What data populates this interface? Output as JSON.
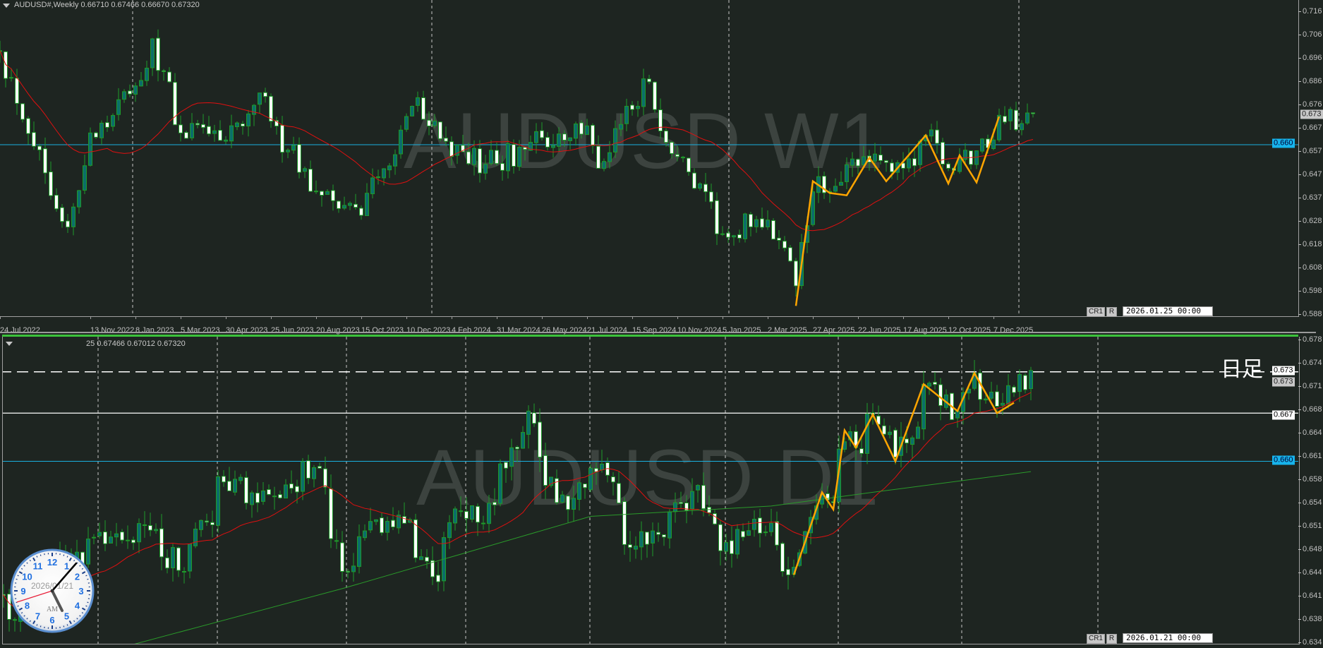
{
  "top_chart": {
    "title": "AUDUSD#,Weekly  0.66710 0.67466 0.66670 0.67320",
    "watermark": "AUDUSD W1",
    "price_ticks": [
      "0.716",
      "0.706",
      "0.696",
      "0.686",
      "0.676",
      "0.667",
      "0.657",
      "0.647",
      "0.637",
      "0.628",
      "0.618",
      "0.608",
      "0.598",
      "0.588"
    ],
    "current_price_label": "0.673",
    "hline_label": "0.660",
    "date_labels": [
      "24 Jul 2022",
      "13 Nov 2022",
      "8 Jan 2023",
      "5 Mar 2023",
      "30 Apr 2023",
      "25 Jun 2023",
      "20 Aug 2023",
      "15 Oct 2023",
      "10 Dec 2023",
      "4 Feb 2024",
      "31 Mar 2024",
      "26 May 2024",
      "21 Jul 2024",
      "15 Sep 2024",
      "10 Nov 2024",
      "5 Jan 2025",
      "2 Mar 2025",
      "27 Apr 2025",
      "22 Jun 2025",
      "17 Aug 2025",
      "12 Oct 2025",
      "7 Dec 2025"
    ],
    "buttons": {
      "cr1": "CR1",
      "r": "R"
    },
    "cursor_date": "2026.01.25 00:00"
  },
  "bottom_chart": {
    "title": "25 0.67466 0.67012 0.67320",
    "watermark": "AUDUSD D1",
    "label": "日足",
    "price_ticks": [
      "0.678",
      "0.674",
      "0.671",
      "0.668",
      "0.664",
      "0.661",
      "0.658",
      "0.654",
      "0.651",
      "0.648",
      "0.644",
      "0.641",
      "0.638",
      "0.634"
    ],
    "dashed_level_label": "0.673",
    "current_price_label": "0.673",
    "white_level_label": "0.667",
    "blue_level_label": "0.660",
    "buttons": {
      "cr1": "CR1",
      "r": "R"
    },
    "cursor_date": "2026.01.21 00:00"
  },
  "clock": {
    "date": "2026/01/21",
    "ampm": "AM",
    "numbers": [
      "12",
      "1",
      "2",
      "3",
      "4",
      "5",
      "6",
      "7",
      "8",
      "9",
      "10",
      "11"
    ]
  },
  "colors": {
    "background": "#1e2521",
    "bull_body": "#0b6e6a",
    "bear_body": "#ffffff",
    "candle_outline": "#1e9a2a",
    "ma_short": "#e01010",
    "ma_long": "#2a9a2a",
    "zigzag": "#ffa500",
    "level_blue": "#1ab0e0",
    "level_white": "#ffffff",
    "separator_green": "#3cc23c"
  },
  "chart_data": [
    {
      "type": "candlestick",
      "symbol": "AUDUSD#",
      "timeframe": "Weekly",
      "ylim": [
        0.588,
        0.716
      ],
      "grid": "vertical dashed",
      "ohlc_last": {
        "open": 0.6671,
        "high": 0.67466,
        "low": 0.6667,
        "close": 0.6732
      },
      "approx_close_path": [
        [
          "2022-07-24",
          0.7
        ],
        [
          "2022-10-16",
          0.625
        ],
        [
          "2022-11-13",
          0.665
        ],
        [
          "2023-01-08",
          0.685
        ],
        [
          "2023-01-29",
          0.705
        ],
        [
          "2023-03-05",
          0.665
        ],
        [
          "2023-04-30",
          0.662
        ],
        [
          "2023-06-11",
          0.682
        ],
        [
          "2023-06-25",
          0.67
        ],
        [
          "2023-08-20",
          0.64
        ],
        [
          "2023-10-15",
          0.63
        ],
        [
          "2023-12-10",
          0.672
        ],
        [
          "2023-12-24",
          0.68
        ],
        [
          "2024-02-04",
          0.655
        ],
        [
          "2024-03-31",
          0.652
        ],
        [
          "2024-05-26",
          0.663
        ],
        [
          "2024-07-21",
          0.668
        ],
        [
          "2024-08-04",
          0.65
        ],
        [
          "2024-09-15",
          0.675
        ],
        [
          "2024-09-29",
          0.688
        ],
        [
          "2024-11-10",
          0.655
        ],
        [
          "2025-01-05",
          0.622
        ],
        [
          "2025-03-02",
          0.628
        ],
        [
          "2025-04-06",
          0.6
        ],
        [
          "2025-04-27",
          0.64
        ],
        [
          "2025-06-22",
          0.651
        ],
        [
          "2025-08-17",
          0.65
        ],
        [
          "2025-09-14",
          0.664
        ],
        [
          "2025-10-12",
          0.65
        ],
        [
          "2025-12-07",
          0.662
        ],
        [
          "2025-12-14",
          0.6725
        ],
        [
          "2026-01-11",
          0.669
        ],
        [
          "2026-01-25",
          0.6732
        ]
      ],
      "ma_period_hint": "moving average (red)",
      "zigzag": [
        [
          "2025-04-06",
          0.5915
        ],
        [
          "2025-04-27",
          0.6445
        ],
        [
          "2025-05-18",
          0.6395
        ],
        [
          "2025-06-08",
          0.6385
        ],
        [
          "2025-07-06",
          0.6545
        ],
        [
          "2025-07-27",
          0.6445
        ],
        [
          "2025-09-14",
          0.664
        ],
        [
          "2025-10-12",
          0.6435
        ],
        [
          "2025-10-26",
          0.6555
        ],
        [
          "2025-11-16",
          0.644
        ],
        [
          "2025-12-14",
          0.672
        ]
      ],
      "horizontal_levels": [
        0.66
      ]
    },
    {
      "type": "candlestick",
      "symbol": "AUDUSD#",
      "timeframe": "Daily",
      "ylim": [
        0.634,
        0.678
      ],
      "grid": "vertical dashed",
      "ohlc_last": {
        "high": 0.67466,
        "low": 0.67012,
        "close": 0.6732
      },
      "approx_close_path": [
        [
          "2025-05-13",
          0.6406
        ],
        [
          "2025-05-16",
          0.637
        ],
        [
          "2025-05-20",
          0.642
        ],
        [
          "2025-06-02",
          0.6468
        ],
        [
          "2025-06-10",
          0.649
        ],
        [
          "2025-06-19",
          0.65
        ],
        [
          "2025-06-27",
          0.644
        ],
        [
          "2025-07-08",
          0.657
        ],
        [
          "2025-07-16",
          0.654
        ],
        [
          "2025-07-31",
          0.659
        ],
        [
          "2025-08-06",
          0.644
        ],
        [
          "2025-08-14",
          0.6515
        ],
        [
          "2025-08-21",
          0.651
        ],
        [
          "2025-08-29",
          0.6425
        ],
        [
          "2025-09-04",
          0.6528
        ],
        [
          "2025-09-10",
          0.651
        ],
        [
          "2025-09-16",
          0.659
        ],
        [
          "2025-09-22",
          0.6673
        ],
        [
          "2025-09-25",
          0.6565
        ],
        [
          "2025-10-01",
          0.653
        ],
        [
          "2025-10-07",
          0.659
        ],
        [
          "2025-10-13",
          0.657
        ],
        [
          "2025-10-15",
          0.6479
        ],
        [
          "2025-10-24",
          0.649
        ],
        [
          "2025-11-03",
          0.6565
        ],
        [
          "2025-11-07",
          0.647
        ],
        [
          "2025-11-13",
          0.649
        ],
        [
          "2025-11-20",
          0.651
        ],
        [
          "2025-11-24",
          0.644
        ],
        [
          "2025-12-03",
          0.6552
        ],
        [
          "2025-12-05",
          0.654
        ],
        [
          "2025-12-10",
          0.6643
        ],
        [
          "2025-12-11",
          0.662
        ],
        [
          "2025-12-16",
          0.6668
        ],
        [
          "2025-12-22",
          0.6606
        ],
        [
          "2025-12-29",
          0.6712
        ],
        [
          "2026-01-06",
          0.6673
        ],
        [
          "2026-01-09",
          0.6728
        ],
        [
          "2026-01-15",
          0.668
        ],
        [
          "2026-01-20",
          0.67
        ],
        [
          "2026-01-23",
          0.6732
        ]
      ],
      "ma_long": [
        [
          "2025-06-16",
          0.6334
        ],
        [
          "2025-08-06",
          0.6415
        ],
        [
          "2025-09-04",
          0.6465
        ],
        [
          "2025-10-07",
          0.652
        ],
        [
          "2025-11-20",
          0.6535
        ],
        [
          "2025-12-16",
          0.6555
        ],
        [
          "2026-01-23",
          0.6585
        ]
      ],
      "zigzag": [
        [
          "2025-11-26",
          0.6435
        ],
        [
          "2025-12-03",
          0.6555
        ],
        [
          "2025-12-05",
          0.653
        ],
        [
          "2025-12-09",
          0.6645
        ],
        [
          "2025-12-11",
          0.662
        ],
        [
          "2025-12-16",
          0.6668
        ],
        [
          "2025-12-22",
          0.66
        ],
        [
          "2025-12-29",
          0.6712
        ],
        [
          "2026-01-06",
          0.6673
        ],
        [
          "2026-01-09",
          0.6728
        ],
        [
          "2026-01-15",
          0.667
        ],
        [
          "2026-01-20",
          0.6685
        ]
      ],
      "horizontal_levels": {
        "dashed_white": 0.673,
        "white": 0.667,
        "blue": 0.66
      }
    }
  ]
}
